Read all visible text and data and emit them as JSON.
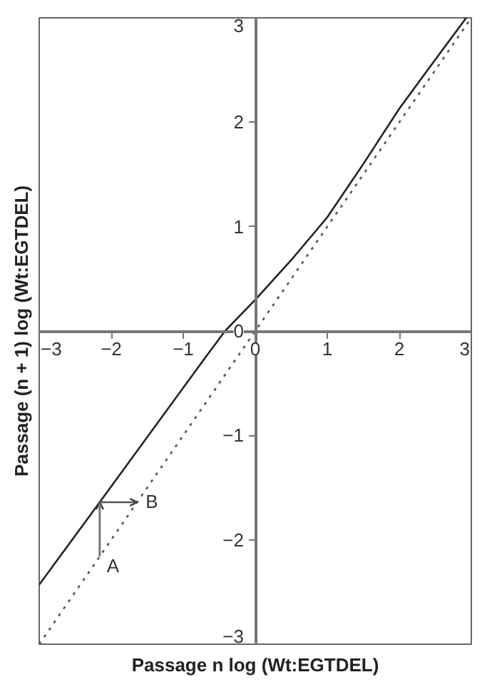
{
  "chart_data": {
    "type": "line",
    "xlabel": "Passage n log (Wt:EGTDEL)",
    "ylabel": "Passage (n + 1) log (Wt:EGTDEL)",
    "xlim": [
      -3,
      3
    ],
    "ylim": [
      -3,
      3
    ],
    "xticks": [
      -3,
      -2,
      -1,
      0,
      1,
      2,
      3
    ],
    "yticks": [
      -3,
      -2,
      -1,
      0,
      1,
      2,
      3
    ],
    "grid": false,
    "series": [
      {
        "color": "#222222",
        "line_style": "solid",
        "x": [
          -3,
          -2.16,
          -0.7,
          -0.42,
          0,
          0.5,
          1,
          1.5,
          2,
          2.5,
          2.93
        ],
        "values": [
          -2.43,
          -1.64,
          -0.26,
          0,
          0.3,
          0.68,
          1.09,
          1.6,
          2.13,
          2.6,
          3
        ]
      },
      {
        "color": "#555555",
        "line_style": "dotted",
        "x": [
          -3,
          3
        ],
        "values": [
          -3,
          3
        ]
      }
    ],
    "annotations": [
      {
        "text": "A",
        "x": -2.16,
        "y": -2.16
      },
      {
        "text": "B",
        "x": -1.64,
        "y": -1.64
      }
    ]
  }
}
